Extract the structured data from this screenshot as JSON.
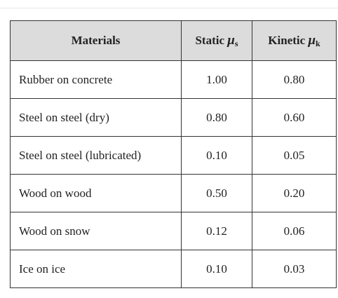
{
  "table": {
    "header": [
      {
        "text": "Materials"
      },
      {
        "text": "Static",
        "symbol": "μ",
        "subscript": "s"
      },
      {
        "text": "Kinetic",
        "symbol": "μ",
        "subscript": "k"
      }
    ],
    "rows": [
      [
        "Rubber on concrete",
        "1.00",
        "0.80"
      ],
      [
        "Steel on steel (dry)",
        "0.80",
        "0.60"
      ],
      [
        "Steel on steel (lubricated)",
        "0.10",
        "0.05"
      ],
      [
        "Wood on wood",
        "0.50",
        "0.20"
      ],
      [
        "Wood on snow",
        "0.12",
        "0.06"
      ],
      [
        "Ice on ice",
        "0.10",
        "0.03"
      ]
    ]
  }
}
